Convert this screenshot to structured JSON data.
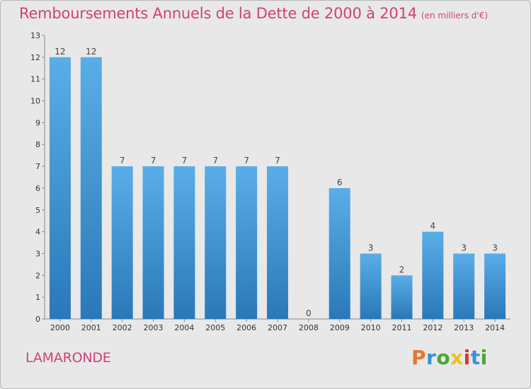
{
  "title": "Remboursements Annuels de la Dette de 2000 à 2014",
  "unit": "(en milliers d'€)",
  "commune": "LAMARONDE",
  "logo": {
    "text": "Proxiti",
    "colors": [
      "#e8762c",
      "#3a8fd6",
      "#4aa832",
      "#e8c020",
      "#d03a3a",
      "#3a8fd6",
      "#4aa832"
    ]
  },
  "colors": {
    "bar_top": "#5aaee8",
    "bar_bottom": "#2a78b8",
    "title": "#d0407a",
    "background": "#e8e8e8"
  },
  "chart_data": {
    "type": "bar",
    "title": "Remboursements Annuels de la Dette de 2000 à 2014",
    "xlabel": "",
    "ylabel": "",
    "categories": [
      "2000",
      "2001",
      "2002",
      "2003",
      "2004",
      "2005",
      "2006",
      "2007",
      "2008",
      "2009",
      "2010",
      "2011",
      "2012",
      "2013",
      "2014"
    ],
    "values": [
      12,
      12,
      7,
      7,
      7,
      7,
      7,
      7,
      0,
      6,
      3,
      2,
      4,
      3,
      3
    ],
    "ylim": [
      0,
      13
    ],
    "yticks": [
      0,
      1,
      2,
      3,
      4,
      5,
      6,
      7,
      8,
      9,
      10,
      11,
      12,
      13
    ],
    "grid": false,
    "legend": "none"
  }
}
